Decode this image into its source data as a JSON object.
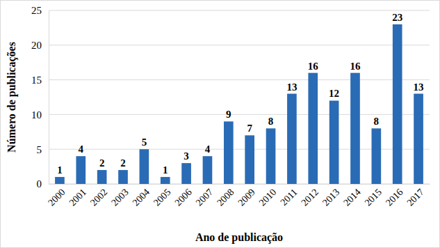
{
  "chart_data": {
    "type": "bar",
    "xlabel": "Ano de publicação",
    "ylabel": "Número de publicações",
    "categories": [
      "2000",
      "2001",
      "2002",
      "2003",
      "2004",
      "2005",
      "2006",
      "2007",
      "2008",
      "2009",
      "2010",
      "2011",
      "2012",
      "2013",
      "2014",
      "2015",
      "2016",
      "2017"
    ],
    "values": [
      1,
      4,
      2,
      2,
      5,
      1,
      3,
      4,
      9,
      7,
      8,
      13,
      16,
      12,
      16,
      8,
      23,
      13
    ],
    "color": "#2a6bb5",
    "ylim": [
      0,
      25
    ],
    "yticks": [
      0,
      5,
      10,
      15,
      20,
      25
    ],
    "grid": true,
    "data_labels": true
  }
}
